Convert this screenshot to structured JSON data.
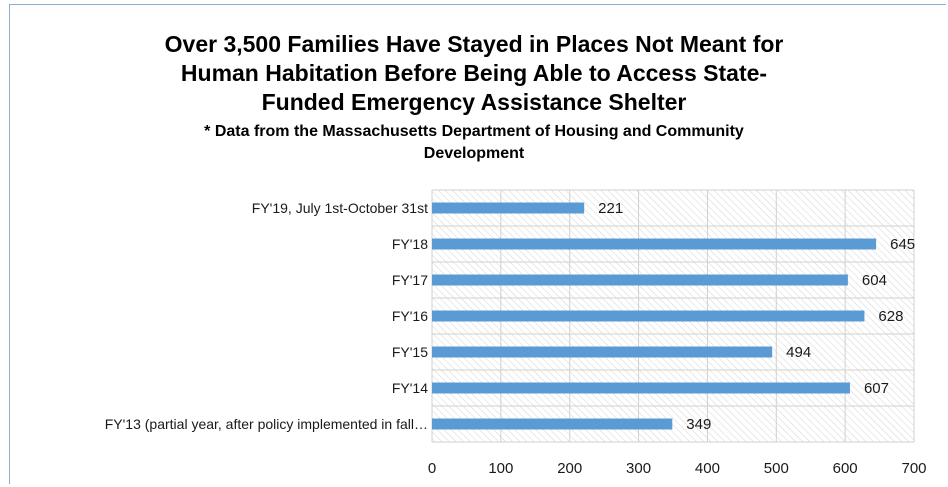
{
  "chart_data": {
    "type": "bar",
    "orientation": "horizontal",
    "title_lines": [
      "Over 3,500 Families Have Stayed in Places Not Meant for",
      "Human Habitation Before Being Able to Access State-",
      "Funded Emergency Assistance Shelter"
    ],
    "subtitle_lines": [
      "* Data from the Massachusetts Department of Housing and Community",
      "Development"
    ],
    "categories": [
      "FY'19, July 1st-October 31st",
      "FY'18",
      "FY'17",
      "FY'16",
      "FY'15",
      "FY'14",
      "FY'13 (partial year, after policy implemented in fall…"
    ],
    "values": [
      221,
      645,
      604,
      628,
      494,
      607,
      349
    ],
    "xlim": [
      0,
      700
    ],
    "xticks": [
      "0",
      "100",
      "200",
      "300",
      "400",
      "500",
      "600",
      "700"
    ],
    "xlabel": "",
    "ylabel": "",
    "grid": true,
    "data_labels": true,
    "bar_color": "#5b9bd5",
    "grid_color": "#d0d0d0",
    "hatch_color": "#d4d4d4"
  }
}
